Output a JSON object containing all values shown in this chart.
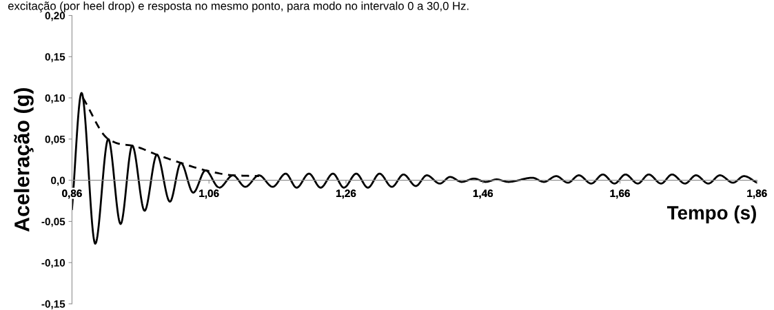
{
  "chart_data": {
    "type": "line",
    "xlabel": "Tempo (s)",
    "ylabel": "Aceleração (g)",
    "annotations": [
      "excitação (por heel drop) e resposta no mesmo ponto, para modo no intervalo 0 a 30,0 Hz."
    ],
    "xlim": [
      0.86,
      1.86
    ],
    "xticks": [
      {
        "value": 0.86,
        "label": "0,86"
      },
      {
        "value": 1.06,
        "label": "1,06"
      },
      {
        "value": 1.26,
        "label": "1,26"
      },
      {
        "value": 1.46,
        "label": "1,46"
      },
      {
        "value": 1.66,
        "label": "1,66"
      },
      {
        "value": 1.86,
        "label": "1,86"
      }
    ],
    "ylim": [
      -0.15,
      0.2
    ],
    "yticks": [
      {
        "value": -0.15,
        "label": "-0,15"
      },
      {
        "value": -0.1,
        "label": "-0,10"
      },
      {
        "value": -0.05,
        "label": "-0,05"
      },
      {
        "value": 0,
        "label": "0,0"
      },
      {
        "value": 0.05,
        "label": "0,05"
      },
      {
        "value": 0.1,
        "label": "0,10"
      },
      {
        "value": 0.15,
        "label": "0,15"
      },
      {
        "value": 0.2,
        "label": "0,20"
      }
    ],
    "grid": false,
    "legend": false,
    "marker": "none",
    "series": [
      {
        "color": "#000000",
        "line_style": "solid",
        "x": [
          0.86,
          0.874,
          0.894,
          0.913,
          0.931,
          0.948,
          0.966,
          0.984,
          1.003,
          1.019,
          1.037,
          1.055,
          1.075,
          1.095,
          1.113,
          1.133,
          1.153,
          1.172,
          1.188,
          1.206,
          1.223,
          1.241,
          1.257,
          1.275,
          1.292,
          1.309,
          1.327,
          1.344,
          1.362,
          1.378,
          1.397,
          1.412,
          1.429,
          1.447,
          1.464,
          1.48,
          1.497,
          1.532,
          1.549,
          1.567,
          1.584,
          1.6,
          1.618,
          1.635,
          1.652,
          1.668,
          1.686,
          1.702,
          1.72,
          1.736,
          1.755,
          1.771,
          1.789,
          1.806,
          1.825,
          1.841,
          1.86
        ],
        "values": [
          -0.035,
          0.106,
          -0.077,
          0.05,
          -0.053,
          0.042,
          -0.037,
          0.031,
          -0.026,
          0.021,
          -0.015,
          0.012,
          -0.009,
          0.006,
          -0.008,
          0.006,
          -0.008,
          0.008,
          -0.009,
          0.008,
          -0.009,
          0.008,
          -0.009,
          0.008,
          -0.009,
          0.008,
          -0.008,
          0.007,
          -0.007,
          0.006,
          -0.004,
          0.004,
          -0.002,
          0.002,
          -0.002,
          0.001,
          -0.002,
          0.003,
          -0.002,
          0.005,
          -0.003,
          0.006,
          -0.004,
          0.007,
          -0.004,
          0.007,
          -0.004,
          0.007,
          -0.004,
          0.007,
          -0.004,
          0.006,
          -0.004,
          0.006,
          -0.003,
          0.005,
          -0.003
        ]
      },
      {
        "color": "#000000",
        "line_style": "dashed",
        "x": [
          0.876,
          0.913,
          0.93,
          0.948,
          0.984,
          1.019,
          1.055,
          1.095,
          1.133
        ],
        "values": [
          0.1,
          0.05,
          0.044,
          0.042,
          0.031,
          0.021,
          0.012,
          0.006,
          0.005
        ]
      }
    ]
  }
}
